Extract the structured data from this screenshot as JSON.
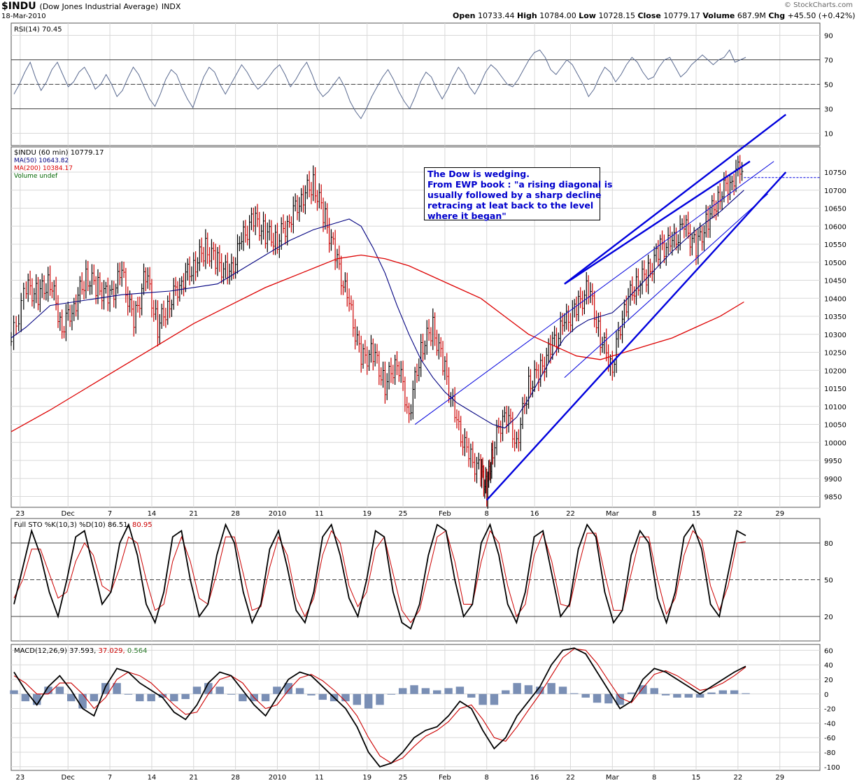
{
  "header": {
    "symbol": "$INDU",
    "name": "(Dow Jones Industrial Average)",
    "exchange": "INDX",
    "date": "18-Mar-2010",
    "open_label": "Open",
    "open": "10733.44",
    "high_label": "High",
    "high": "10784.00",
    "low_label": "Low",
    "low": "10728.15",
    "close_label": "Close",
    "close": "10779.17",
    "volume_label": "Volume",
    "volume": "687.9M",
    "chg_label": "Chg",
    "chg": "+45.50 (+0.42%)",
    "watermark": "© StockCharts.com"
  },
  "annotation": {
    "lines": [
      "The Dow is wedging.",
      "From EWP book : \"a rising diagonal is",
      "usually followed by a sharp decline",
      "retracing at leat back to the level",
      "where it began\""
    ]
  },
  "colors": {
    "price_up": "#000000",
    "price_down": "#cc0000",
    "ma50": "#000080",
    "ma200": "#dd0000",
    "trendline": "#0000dd",
    "indicator": "#5a6a90",
    "panel_bg": "#ffffff",
    "grid": "#d8d8d8",
    "macd_hist": "#7a8fb5"
  },
  "chart_data": [
    {
      "type": "line",
      "title": "RSI(14) 70.45",
      "legend": [
        {
          "label": "RSI(14)",
          "value": "70.45"
        }
      ],
      "yticks": [
        90,
        70,
        50,
        30,
        10
      ],
      "ylim": [
        0,
        100
      ],
      "overbought": 70,
      "oversold": 30,
      "series": [
        {
          "name": "RSI(14)",
          "values": [
            42,
            50,
            60,
            68,
            55,
            45,
            52,
            62,
            68,
            58,
            48,
            52,
            60,
            64,
            56,
            46,
            50,
            58,
            50,
            40,
            45,
            55,
            64,
            58,
            48,
            38,
            32,
            42,
            54,
            62,
            58,
            47,
            38,
            31,
            44,
            56,
            64,
            60,
            50,
            42,
            50,
            58,
            66,
            60,
            52,
            46,
            50,
            56,
            62,
            66,
            58,
            48,
            54,
            62,
            68,
            58,
            46,
            40,
            44,
            50,
            56,
            48,
            36,
            28,
            22,
            30,
            40,
            48,
            56,
            62,
            54,
            44,
            36,
            30,
            40,
            52,
            60,
            56,
            46,
            38,
            46,
            56,
            64,
            58,
            48,
            42,
            50,
            60,
            66,
            62,
            56,
            50,
            48,
            54,
            62,
            70,
            76,
            78,
            72,
            62,
            58,
            64,
            70,
            66,
            58,
            50,
            40,
            46,
            56,
            64,
            60,
            52,
            58,
            66,
            72,
            68,
            60,
            54,
            56,
            64,
            70,
            72,
            64,
            56,
            60,
            66,
            70,
            74,
            70,
            66,
            70,
            72,
            78,
            68,
            70,
            72
          ]
        }
      ]
    },
    {
      "type": "line",
      "title": "$INDU (60 min) 10779.17",
      "legend": [
        {
          "label": "$INDU (60 min)",
          "value": "10779.17"
        },
        {
          "label": "MA(50)",
          "value": "10643.82"
        },
        {
          "label": "MA(200)",
          "value": "10384.17"
        },
        {
          "label": "Volume undef",
          "value": ""
        }
      ],
      "yticks": [
        10750,
        10700,
        10650,
        10600,
        10550,
        10500,
        10450,
        10400,
        10350,
        10300,
        10250,
        10200,
        10150,
        10100,
        10050,
        10000,
        9950,
        9900,
        9850
      ],
      "ylim": [
        9820,
        10820
      ],
      "x_tick_labels": [
        "23",
        "Dec",
        "7",
        "14",
        "21",
        "28",
        "2010",
        "11",
        "19",
        "25",
        "Feb",
        "8",
        "16",
        "22",
        "Mar",
        "8",
        "15",
        "22",
        "29"
      ],
      "x_tick_days": [
        -1,
        7,
        14,
        21,
        28,
        35,
        42,
        49,
        57,
        63,
        70,
        77,
        85,
        91,
        98,
        105,
        112,
        119,
        126
      ],
      "x_range_days": [
        -2.5,
        132.7
      ],
      "close": {
        "days": [
          -2.5,
          0,
          2,
          4,
          6,
          8,
          10,
          12,
          14,
          16,
          18,
          20,
          22,
          24,
          26,
          28,
          30,
          32,
          34,
          36,
          38,
          40,
          42,
          44,
          46,
          48,
          50,
          52,
          54,
          56,
          58,
          60,
          62,
          64,
          66,
          68,
          70,
          72,
          74,
          76,
          77,
          78,
          80,
          82,
          84,
          86,
          88,
          90,
          92,
          94,
          96,
          98,
          100,
          102,
          104,
          106,
          108,
          110,
          112,
          114,
          116,
          118,
          120
        ],
        "values": [
          10280,
          10430,
          10410,
          10450,
          10320,
          10380,
          10460,
          10430,
          10400,
          10470,
          10330,
          10470,
          10320,
          10390,
          10450,
          10490,
          10540,
          10500,
          10460,
          10560,
          10620,
          10580,
          10560,
          10620,
          10680,
          10720,
          10620,
          10500,
          10380,
          10230,
          10250,
          10160,
          10230,
          10080,
          10260,
          10320,
          10200,
          10050,
          9960,
          9920,
          9870,
          9980,
          10090,
          10000,
          10160,
          10200,
          10270,
          10330,
          10370,
          10430,
          10290,
          10210,
          10380,
          10440,
          10470,
          10540,
          10550,
          10600,
          10540,
          10620,
          10690,
          10730,
          10779
        ]
      },
      "ma50": {
        "days": [
          -2.5,
          0,
          4,
          8,
          12,
          16,
          20,
          24,
          28,
          32,
          36,
          40,
          44,
          48,
          52,
          54,
          56,
          58,
          60,
          62,
          64,
          66,
          68,
          70,
          72,
          74,
          76,
          78,
          80,
          82,
          84,
          86,
          88,
          90,
          92,
          94,
          96,
          98,
          100,
          104,
          108,
          112,
          116,
          120
        ],
        "values": [
          10290,
          10320,
          10380,
          10390,
          10400,
          10410,
          10415,
          10420,
          10430,
          10440,
          10480,
          10520,
          10560,
          10590,
          10610,
          10620,
          10600,
          10540,
          10470,
          10380,
          10300,
          10230,
          10180,
          10140,
          10110,
          10090,
          10070,
          10050,
          10040,
          10070,
          10120,
          10180,
          10240,
          10290,
          10320,
          10340,
          10350,
          10360,
          10390,
          10460,
          10530,
          10590,
          10640,
          10700
        ]
      },
      "ma200": {
        "days": [
          -2.5,
          4,
          10,
          16,
          22,
          28,
          34,
          40,
          46,
          52,
          56,
          60,
          64,
          68,
          72,
          76,
          80,
          84,
          88,
          92,
          96,
          100,
          104,
          108,
          112,
          116,
          120
        ],
        "values": [
          10030,
          10090,
          10150,
          10210,
          10270,
          10330,
          10380,
          10430,
          10470,
          10510,
          10520,
          10510,
          10490,
          10460,
          10430,
          10400,
          10350,
          10300,
          10270,
          10240,
          10230,
          10250,
          10270,
          10290,
          10320,
          10350,
          10390
        ]
      },
      "trendlines": [
        {
          "from": [
            77,
            9840
          ],
          "to": [
            127,
            10750
          ]
        },
        {
          "from": [
            90,
            10440
          ],
          "to": [
            121,
            10780
          ]
        },
        {
          "from": [
            65,
            10050
          ],
          "to": [
            125,
            10780
          ]
        },
        {
          "from": [
            90,
            10180
          ],
          "to": [
            124,
            10690
          ]
        },
        {
          "from": [
            90,
            10440
          ],
          "to": [
            127,
            10910
          ]
        }
      ],
      "last_close_line": 10735
    },
    {
      "type": "line",
      "title": "Full STO %K(10,3) %D(10) 86.51, 80.95",
      "legend": [
        {
          "label": "Full STO %K(10,3) %D(10)",
          "value": "86.51"
        },
        {
          "label": "",
          "value": "80.95"
        }
      ],
      "yticks": [
        80,
        50,
        20
      ],
      "ylim": [
        0,
        100
      ],
      "series": [
        {
          "name": "%K",
          "values": [
            30,
            60,
            90,
            70,
            40,
            20,
            50,
            85,
            90,
            60,
            30,
            40,
            80,
            95,
            70,
            30,
            15,
            40,
            85,
            90,
            50,
            20,
            30,
            70,
            95,
            80,
            40,
            15,
            30,
            75,
            90,
            60,
            25,
            15,
            40,
            85,
            95,
            70,
            35,
            20,
            50,
            90,
            85,
            40,
            15,
            10,
            30,
            70,
            95,
            90,
            50,
            20,
            30,
            80,
            95,
            70,
            30,
            15,
            40,
            85,
            90,
            55,
            20,
            30,
            75,
            95,
            85,
            40,
            15,
            25,
            70,
            90,
            80,
            35,
            15,
            40,
            85,
            95,
            75,
            30,
            20,
            55,
            90,
            86
          ]
        },
        {
          "name": "%D",
          "values": [
            35,
            50,
            75,
            75,
            55,
            35,
            40,
            65,
            80,
            70,
            45,
            40,
            60,
            85,
            80,
            50,
            25,
            30,
            65,
            85,
            65,
            35,
            30,
            55,
            85,
            85,
            55,
            25,
            28,
            60,
            85,
            70,
            35,
            20,
            35,
            70,
            90,
            80,
            45,
            28,
            40,
            75,
            85,
            55,
            25,
            15,
            25,
            55,
            85,
            90,
            65,
            30,
            30,
            65,
            90,
            80,
            45,
            20,
            30,
            70,
            88,
            65,
            30,
            28,
            60,
            88,
            88,
            55,
            25,
            25,
            55,
            85,
            85,
            50,
            22,
            35,
            70,
            90,
            82,
            45,
            25,
            45,
            80,
            81
          ]
        }
      ]
    },
    {
      "type": "line",
      "title": "MACD(12,26,9) 37.593, 37.029, 0.564",
      "legend": [
        {
          "label": "MACD(12,26,9)",
          "value": "37.593"
        },
        {
          "label": "",
          "value": "37.029"
        },
        {
          "label": "",
          "value": "0.564"
        }
      ],
      "yticks": [
        60,
        40,
        20,
        0,
        -20,
        -40,
        -60,
        -80,
        -100
      ],
      "ylim": [
        -105,
        68
      ],
      "series": [
        {
          "name": "MACD",
          "values": [
            30,
            5,
            -15,
            10,
            25,
            5,
            -20,
            -30,
            10,
            35,
            30,
            15,
            5,
            -5,
            -25,
            -35,
            -15,
            15,
            30,
            25,
            5,
            -15,
            -30,
            -5,
            20,
            30,
            25,
            10,
            -5,
            -20,
            -45,
            -80,
            -100,
            -95,
            -80,
            -60,
            -50,
            -45,
            -30,
            -10,
            -20,
            -50,
            -75,
            -60,
            -30,
            -10,
            10,
            40,
            60,
            63,
            55,
            30,
            5,
            -20,
            -10,
            20,
            35,
            30,
            20,
            10,
            0,
            10,
            20,
            30,
            38
          ]
        },
        {
          "name": "Signal",
          "values": [
            25,
            15,
            0,
            0,
            15,
            15,
            0,
            -20,
            -5,
            20,
            30,
            25,
            15,
            0,
            -15,
            -28,
            -25,
            0,
            20,
            25,
            15,
            -5,
            -20,
            -15,
            5,
            22,
            27,
            18,
            5,
            -10,
            -30,
            -60,
            -85,
            -95,
            -88,
            -72,
            -58,
            -50,
            -38,
            -20,
            -15,
            -35,
            -60,
            -65,
            -45,
            -22,
            0,
            25,
            50,
            62,
            60,
            42,
            18,
            -5,
            -12,
            8,
            27,
            32,
            25,
            15,
            5,
            8,
            15,
            25,
            37
          ]
        },
        {
          "name": "Histogram",
          "values": [
            5,
            -10,
            -15,
            10,
            10,
            -10,
            -20,
            -10,
            15,
            15,
            0,
            -10,
            -10,
            -5,
            -10,
            -7,
            10,
            15,
            10,
            0,
            -10,
            -10,
            -10,
            10,
            15,
            8,
            -2,
            -8,
            -10,
            -10,
            -15,
            -20,
            -15,
            0,
            8,
            12,
            8,
            5,
            8,
            10,
            -5,
            -15,
            -15,
            5,
            15,
            12,
            10,
            15,
            10,
            1,
            -5,
            -12,
            -13,
            -15,
            2,
            12,
            8,
            -2,
            -5,
            -5,
            -5,
            2,
            5,
            5,
            1
          ]
        }
      ]
    }
  ]
}
